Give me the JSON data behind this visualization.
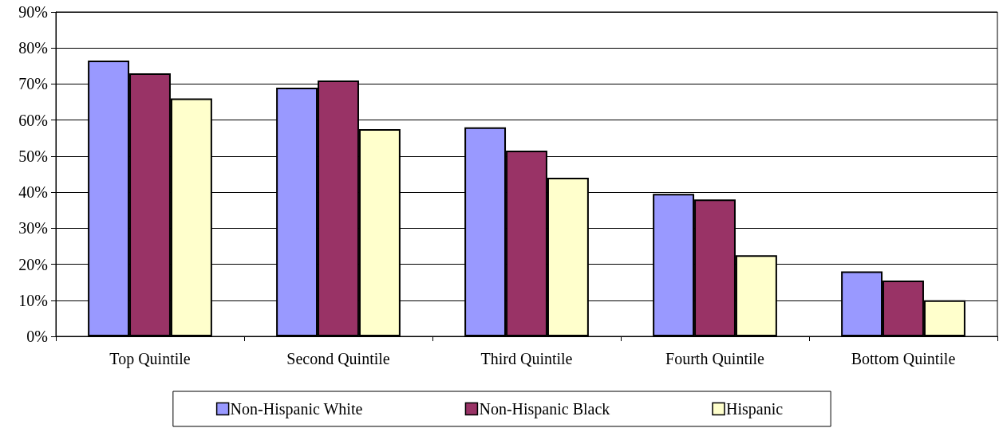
{
  "chart_data": {
    "type": "bar",
    "categories": [
      "Top Quintile",
      "Second Quintile",
      "Third Quintile",
      "Fourth Quintile",
      "Bottom Quintile"
    ],
    "series": [
      {
        "name": "Non-Hispanic White",
        "color": "#9999ff",
        "values": [
          76.5,
          69,
          58,
          39.5,
          18
        ]
      },
      {
        "name": "Non-Hispanic Black",
        "color": "#993366",
        "values": [
          73,
          71,
          51.5,
          38,
          15.5
        ]
      },
      {
        "name": "Hispanic",
        "color": "#ffffcc",
        "values": [
          66,
          57.5,
          44,
          22.5,
          10
        ]
      }
    ],
    "ylim": [
      0,
      90
    ],
    "yticks": [
      {
        "value": 0,
        "label": "0%"
      },
      {
        "value": 10,
        "label": "10%"
      },
      {
        "value": 20,
        "label": "20%"
      },
      {
        "value": 30,
        "label": "30%"
      },
      {
        "value": 40,
        "label": "40%"
      },
      {
        "value": 50,
        "label": "50%"
      },
      {
        "value": 60,
        "label": "60%"
      },
      {
        "value": 70,
        "label": "70%"
      },
      {
        "value": 80,
        "label": "80%"
      },
      {
        "value": 90,
        "label": "90%"
      }
    ],
    "grid": "y",
    "legend": "bottom"
  }
}
